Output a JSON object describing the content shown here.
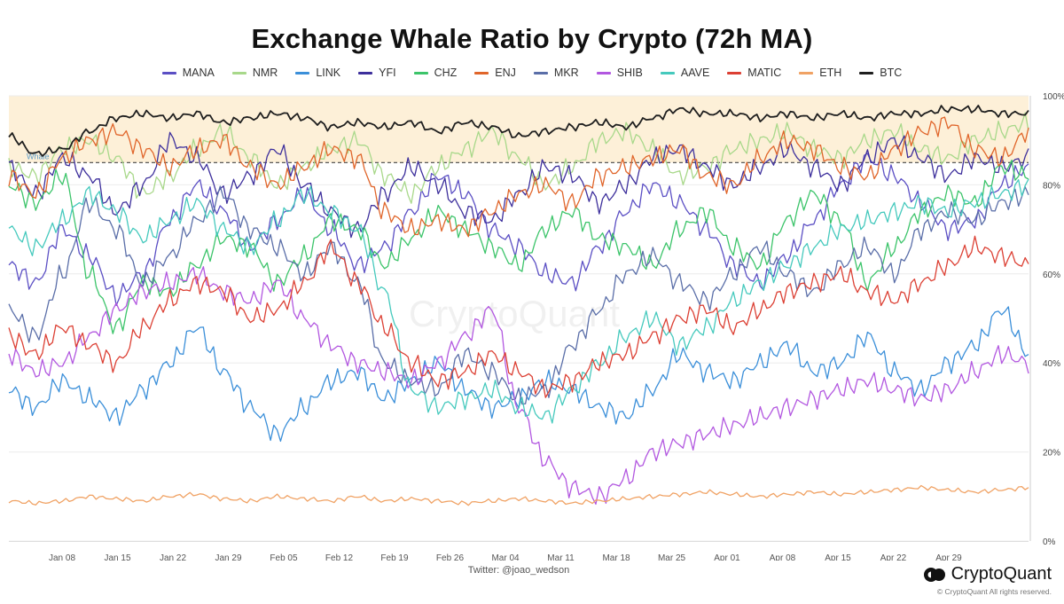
{
  "title": "Exchange Whale Ratio by Crypto (72h MA)",
  "footer": {
    "credit": "Twitter: @joao_wedson"
  },
  "brand": {
    "name": "CryptoQuant",
    "copyright": "© CryptoQuant All rights reserved."
  },
  "watermark": "CryptoQuant",
  "chart_data": {
    "type": "line",
    "title": "Exchange Whale Ratio by Crypto (72h MA)",
    "x_labels": [
      "Jan 08",
      "Jan 15",
      "Jan 22",
      "Jan 29",
      "Feb 05",
      "Feb 12",
      "Feb 19",
      "Feb 26",
      "Mar 04",
      "Mar 11",
      "Mar 18",
      "Mar 25",
      "Apr 01",
      "Apr 08",
      "Apr 15",
      "Apr 22",
      "Apr 29"
    ],
    "y_ticks": [
      "0%",
      "20%",
      "40%",
      "60%",
      "80%",
      "100%"
    ],
    "ylim": [
      0,
      100
    ],
    "threshold": {
      "value": 85,
      "label": "Whale",
      "color": "#fdf0d8"
    },
    "legend_position": "top-center",
    "grid": "horizontal",
    "series": [
      {
        "name": "MANA",
        "color": "#5b4fc4",
        "values": [
          62,
          58,
          70,
          64,
          55,
          60,
          72,
          80,
          74,
          66,
          72,
          78,
          70,
          62,
          66,
          74,
          82,
          78,
          70,
          66,
          60,
          58,
          66,
          74,
          80,
          76,
          70,
          62,
          58,
          64,
          72,
          80,
          86,
          82,
          76,
          70,
          72,
          80,
          84
        ]
      },
      {
        "name": "NMR",
        "color": "#a8d88a",
        "values": [
          84,
          82,
          88,
          90,
          86,
          78,
          82,
          88,
          92,
          86,
          80,
          84,
          88,
          90,
          82,
          78,
          84,
          88,
          92,
          86,
          80,
          84,
          90,
          92,
          88,
          82,
          84,
          88,
          90,
          92,
          88,
          86,
          90,
          92,
          88,
          86,
          90,
          92,
          94
        ]
      },
      {
        "name": "LINK",
        "color": "#3b8fd9",
        "values": [
          34,
          30,
          36,
          32,
          28,
          34,
          40,
          48,
          38,
          30,
          24,
          30,
          36,
          38,
          32,
          36,
          40,
          34,
          30,
          32,
          36,
          34,
          30,
          28,
          34,
          42,
          38,
          36,
          40,
          44,
          38,
          40,
          46,
          38,
          34,
          40,
          44,
          52,
          42
        ]
      },
      {
        "name": "YFI",
        "color": "#3d2f9c",
        "values": [
          84,
          78,
          86,
          82,
          74,
          80,
          90,
          86,
          78,
          82,
          88,
          80,
          74,
          70,
          78,
          84,
          80,
          74,
          72,
          78,
          84,
          82,
          76,
          80,
          86,
          88,
          84,
          80,
          84,
          88,
          84,
          80,
          86,
          90,
          86,
          82,
          86,
          84,
          86
        ]
      },
      {
        "name": "CHZ",
        "color": "#3cc46a",
        "values": [
          80,
          76,
          82,
          60,
          48,
          58,
          56,
          62,
          68,
          66,
          58,
          64,
          72,
          70,
          62,
          68,
          74,
          70,
          66,
          62,
          70,
          74,
          68,
          66,
          62,
          70,
          74,
          66,
          62,
          72,
          78,
          72,
          58,
          66,
          74,
          78,
          76,
          84,
          82
        ]
      },
      {
        "name": "ENJ",
        "color": "#e0652a",
        "values": [
          82,
          78,
          86,
          90,
          92,
          88,
          84,
          88,
          90,
          84,
          80,
          84,
          88,
          86,
          74,
          70,
          72,
          70,
          74,
          78,
          80,
          76,
          82,
          84,
          86,
          88,
          82,
          80,
          86,
          90,
          88,
          84,
          82,
          88,
          92,
          94,
          88,
          86,
          92
        ]
      },
      {
        "name": "MKR",
        "color": "#5a6ea8",
        "values": [
          52,
          46,
          60,
          76,
          70,
          58,
          64,
          72,
          78,
          70,
          66,
          60,
          66,
          58,
          40,
          36,
          34,
          42,
          38,
          32,
          34,
          44,
          52,
          60,
          64,
          58,
          54,
          60,
          66,
          60,
          56,
          62,
          66,
          60,
          70,
          74,
          72,
          76,
          78
        ]
      },
      {
        "name": "SHIB",
        "color": "#b257e0",
        "values": [
          42,
          38,
          40,
          46,
          52,
          56,
          58,
          60,
          56,
          54,
          58,
          50,
          44,
          40,
          38,
          36,
          40,
          46,
          52,
          30,
          18,
          12,
          10,
          14,
          20,
          22,
          24,
          26,
          28,
          30,
          32,
          34,
          36,
          34,
          32,
          34,
          38,
          42,
          40
        ]
      },
      {
        "name": "AAVE",
        "color": "#45c9bd",
        "values": [
          70,
          66,
          72,
          78,
          74,
          68,
          72,
          76,
          70,
          66,
          72,
          78,
          74,
          70,
          56,
          34,
          30,
          32,
          34,
          30,
          28,
          34,
          40,
          46,
          50,
          44,
          48,
          54,
          58,
          62,
          66,
          70,
          72,
          74,
          76,
          74,
          76,
          78,
          80
        ]
      },
      {
        "name": "MATIC",
        "color": "#dc4034",
        "values": [
          46,
          42,
          48,
          44,
          40,
          48,
          54,
          58,
          56,
          50,
          52,
          58,
          66,
          58,
          48,
          40,
          36,
          38,
          42,
          38,
          34,
          36,
          40,
          42,
          46,
          50,
          52,
          48,
          52,
          56,
          58,
          60,
          56,
          54,
          58,
          62,
          66,
          64,
          62
        ]
      },
      {
        "name": "ETH",
        "color": "#f0a264",
        "values": [
          9,
          8.5,
          9,
          10,
          9.5,
          9,
          10,
          10.5,
          9.5,
          9,
          10,
          9.5,
          9,
          10,
          9,
          9.5,
          9,
          8.5,
          9,
          9.5,
          9,
          8.5,
          9,
          9.5,
          10,
          10.5,
          11,
          10.5,
          10,
          10.5,
          11,
          10.5,
          11,
          11.5,
          12,
          11.5,
          11,
          11.5,
          12
        ]
      },
      {
        "name": "BTC",
        "color": "#1f1f1f",
        "values": [
          91,
          87,
          88,
          92,
          95,
          96,
          95,
          96,
          94,
          95,
          96,
          95,
          93,
          94,
          93,
          94,
          92,
          94,
          93,
          91,
          92,
          93,
          94,
          93,
          95,
          97,
          96,
          96,
          95,
          96,
          95,
          96,
          95,
          96,
          96,
          97,
          97,
          96,
          96
        ]
      }
    ]
  }
}
